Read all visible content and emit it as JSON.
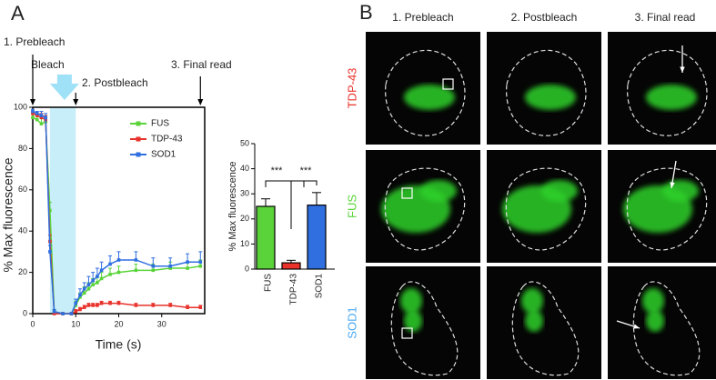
{
  "panel_labels": [
    "A",
    "B"
  ],
  "chart_data": [
    {
      "type": "line",
      "xlabel": "Time (s)",
      "ylabel": "% Max fluorescence",
      "annotations": [
        "1. Prebleach",
        "Bleach",
        "2. Postbleach",
        "3. Final read"
      ],
      "bleach_window": [
        4,
        10
      ],
      "x": [
        0,
        1,
        2,
        3,
        4,
        5,
        7,
        9,
        10,
        11,
        12,
        13,
        14,
        15,
        16,
        18,
        20,
        24,
        28,
        32,
        36,
        39
      ],
      "xlim": [
        0,
        40
      ],
      "xticks": [
        0,
        10,
        20,
        30
      ],
      "ylim": [
        0,
        100
      ],
      "yticks": [
        0,
        20,
        40,
        60,
        80,
        100
      ],
      "series": [
        {
          "name": "FUS",
          "color": "#5ad33a",
          "values": [
            95,
            94,
            92,
            93,
            50,
            1,
            0,
            0,
            4,
            8,
            10,
            12,
            14,
            15,
            17,
            19,
            20,
            21,
            21,
            22,
            22,
            23
          ],
          "errors": [
            2,
            2,
            3,
            3,
            4,
            1,
            0,
            0,
            2,
            2,
            3,
            3,
            3,
            3,
            3,
            3,
            3,
            3,
            3,
            3,
            3,
            3
          ]
        },
        {
          "name": "TDP-43",
          "color": "#e8322b",
          "values": [
            97,
            96,
            95,
            94,
            35,
            0,
            0,
            0,
            1,
            2,
            3,
            4,
            4,
            4,
            5,
            5,
            5,
            4,
            4,
            4,
            3,
            3
          ],
          "errors": [
            1,
            1,
            2,
            2,
            3,
            0,
            0,
            0,
            1,
            1,
            1,
            1,
            1,
            1,
            1,
            1,
            1,
            1,
            1,
            1,
            1,
            1
          ]
        },
        {
          "name": "SOD1",
          "color": "#2f6fe0",
          "values": [
            98,
            97,
            96,
            95,
            30,
            1,
            0,
            0,
            5,
            9,
            12,
            14,
            16,
            18,
            21,
            24,
            26,
            26,
            23,
            23,
            25,
            25
          ],
          "errors": [
            1,
            1,
            2,
            2,
            3,
            1,
            0,
            0,
            2,
            3,
            3,
            4,
            4,
            4,
            4,
            4,
            4,
            4,
            4,
            4,
            4,
            5
          ]
        }
      ]
    },
    {
      "type": "bar",
      "ylabel": "% Max fluorescence",
      "annotations": [
        "***",
        "***"
      ],
      "categories": [
        "FUS",
        "TDP-43",
        "SOD1"
      ],
      "values": [
        25,
        2.5,
        25.5
      ],
      "errors": [
        3,
        1,
        5
      ],
      "colors": [
        "#5ad33a",
        "#e8322b",
        "#2f6fe0"
      ],
      "ylim": [
        0,
        50
      ],
      "yticks": [
        0,
        10,
        20,
        30,
        40,
        50
      ]
    }
  ],
  "panel_b": {
    "columns": [
      "1. Prebleach",
      "2. Postbleach",
      "3. Final read"
    ],
    "rows": [
      {
        "label": "TDP-43",
        "color": "#e8322b"
      },
      {
        "label": "FUS",
        "color": "#5ad33a"
      },
      {
        "label": "SOD1",
        "color": "#4aa8f0"
      }
    ]
  }
}
